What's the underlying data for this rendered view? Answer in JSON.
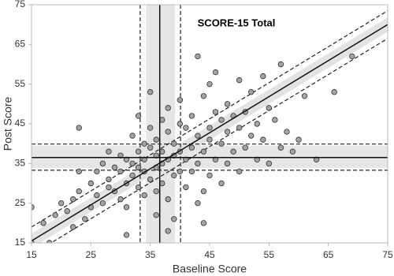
{
  "chart_data": {
    "type": "scatter",
    "title": "SCORE-15 Total",
    "x_label": "Baseline Score",
    "y_label": "Post Score",
    "xlim": [
      15,
      75
    ],
    "ylim": [
      15,
      75
    ],
    "xticks": [
      15,
      25,
      35,
      45,
      55,
      65,
      75
    ],
    "yticks": [
      15,
      25,
      35,
      45,
      55,
      65,
      75
    ],
    "color": "#9a9a9a",
    "x": [
      15,
      15,
      17,
      18,
      19,
      20,
      21,
      22,
      22,
      23,
      23,
      24,
      25,
      25,
      26,
      26,
      27,
      27,
      28,
      28,
      28,
      29,
      29,
      30,
      30,
      30,
      31,
      31,
      31,
      32,
      32,
      32,
      33,
      33,
      33,
      33,
      34,
      34,
      34,
      34,
      35,
      35,
      35,
      35,
      36,
      36,
      36,
      36,
      37,
      37,
      37,
      37,
      38,
      38,
      38,
      38,
      39,
      39,
      39,
      39,
      40,
      40,
      40,
      40,
      41,
      41,
      41,
      42,
      42,
      42,
      43,
      43,
      43,
      44,
      44,
      44,
      45,
      45,
      45,
      45,
      46,
      46,
      46,
      47,
      47,
      47,
      48,
      48,
      48,
      49,
      49,
      50,
      50,
      50,
      51,
      51,
      52,
      52,
      53,
      53,
      54,
      54,
      55,
      55,
      56,
      57,
      57,
      58,
      59,
      60,
      61,
      63,
      66,
      69,
      43,
      44,
      38,
      36,
      31,
      23
    ],
    "values": [
      24,
      15,
      20,
      15,
      22,
      25,
      23,
      26,
      19,
      28,
      44,
      21,
      30,
      24,
      27,
      33,
      35,
      25,
      38,
      29,
      31,
      28,
      34,
      33,
      26,
      37,
      36,
      30,
      24,
      35,
      42,
      32,
      38,
      29,
      34,
      47,
      36,
      27,
      40,
      33,
      53,
      39,
      31,
      44,
      37,
      41,
      28,
      34,
      46,
      30,
      38,
      35,
      43,
      26,
      36,
      49,
      40,
      32,
      21,
      37,
      45,
      33,
      38,
      51,
      44,
      36,
      29,
      47,
      39,
      33,
      62,
      42,
      35,
      52,
      38,
      28,
      55,
      44,
      41,
      32,
      48,
      36,
      58,
      46,
      40,
      30,
      50,
      43,
      35,
      47,
      38,
      56,
      44,
      33,
      48,
      39,
      53,
      42,
      45,
      36,
      57,
      41,
      49,
      35,
      46,
      60,
      39,
      43,
      38,
      41,
      52,
      36,
      53,
      62,
      25,
      20,
      18,
      22,
      17,
      33
    ],
    "baseline_mean": 36.6,
    "baseline_band": [
      34.3,
      39.2
    ],
    "baseline_limits": [
      33.3,
      40.1
    ],
    "post_mean": 36.5,
    "post_band": [
      33.8,
      39.5
    ],
    "post_limits": [
      33.3,
      39.9
    ],
    "regression": {
      "x": [
        15,
        75
      ],
      "y": [
        15.5,
        70
      ],
      "band": 1.8,
      "limits": 3.5
    }
  }
}
